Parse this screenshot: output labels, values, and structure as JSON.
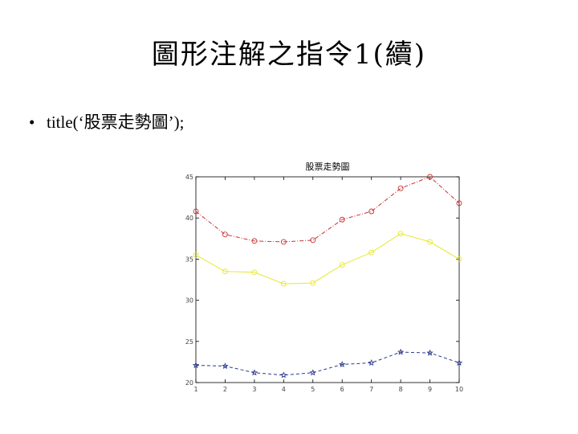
{
  "slide": {
    "title": "圖形注解之指令1(續)",
    "bullets": [
      {
        "marker": "•",
        "text": "title(‘股票走勢圖’);"
      }
    ]
  },
  "chart_data": {
    "type": "line",
    "title": "股票走勢圖",
    "xlabel": "",
    "ylabel": "",
    "x": [
      1,
      2,
      3,
      4,
      5,
      6,
      7,
      8,
      9,
      10
    ],
    "xlim": [
      1,
      10
    ],
    "ylim": [
      20,
      45
    ],
    "xticks": [
      "1",
      "2",
      "3",
      "4",
      "5",
      "6",
      "7",
      "8",
      "9",
      "10"
    ],
    "yticks": [
      "20",
      "25",
      "30",
      "35",
      "40",
      "45"
    ],
    "grid": false,
    "series": [
      {
        "values": [
          40.8,
          38.0,
          37.2,
          37.1,
          37.3,
          39.8,
          40.8,
          43.6,
          45.0,
          41.8
        ],
        "color": "#cc3333",
        "marker": "circle",
        "dash": "dashdot"
      },
      {
        "values": [
          35.5,
          33.5,
          33.4,
          32.0,
          32.1,
          34.3,
          35.8,
          38.1,
          37.1,
          35.0
        ],
        "color": "#e8e830",
        "marker": "circle",
        "dash": "solid"
      },
      {
        "values": [
          22.1,
          22.0,
          21.2,
          20.9,
          21.2,
          22.2,
          22.4,
          23.7,
          23.6,
          22.4
        ],
        "color": "#2b3a8f",
        "marker": "star",
        "dash": "dashed"
      }
    ]
  }
}
